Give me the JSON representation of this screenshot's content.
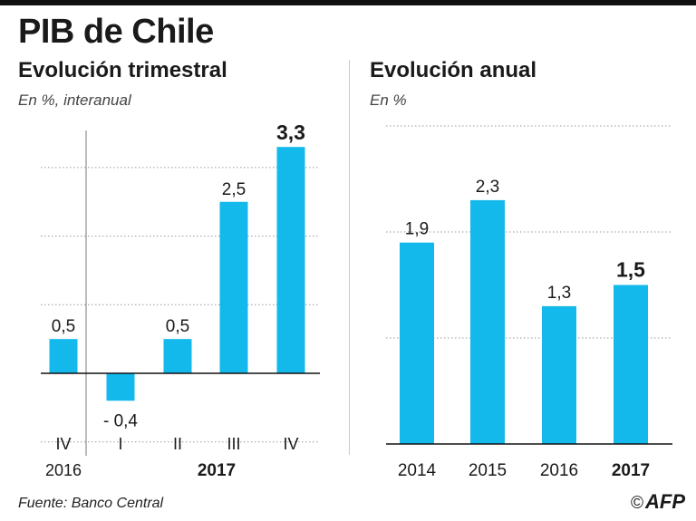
{
  "title": "PIB de Chile",
  "colors": {
    "bar": "#14b9ec",
    "grid": "#9a9a9a",
    "axis": "#111111",
    "text": "#1a1a1a"
  },
  "chart_data": [
    {
      "type": "bar",
      "title": "Evolución trimestral",
      "subtitle": "En %, interanual",
      "categories": [
        "IV",
        "I",
        "II",
        "III",
        "IV"
      ],
      "year_labels": [
        "2016",
        "2017"
      ],
      "values": [
        0.5,
        -0.4,
        0.5,
        2.5,
        3.3
      ],
      "value_labels": [
        "0,5",
        "- 0,4",
        "0,5",
        "2,5",
        "3,3"
      ],
      "highlight_index": 4,
      "ylim": [
        -1,
        4
      ],
      "gridlines": [
        -1,
        1,
        2,
        3
      ],
      "xlabel": "",
      "ylabel": ""
    },
    {
      "type": "bar",
      "title": "Evolución anual",
      "subtitle": "En %",
      "categories": [
        "2014",
        "2015",
        "2016",
        "2017"
      ],
      "values": [
        1.9,
        2.3,
        1.3,
        1.5
      ],
      "value_labels": [
        "1,9",
        "2,3",
        "1,3",
        "1,5"
      ],
      "highlight_index": 3,
      "ylim": [
        0,
        3
      ],
      "gridlines": [
        1,
        2,
        3
      ],
      "xlabel": "",
      "ylabel": ""
    }
  ],
  "footer": {
    "source": "Fuente: Banco Central",
    "copyright": "©",
    "credit": "AFP"
  }
}
